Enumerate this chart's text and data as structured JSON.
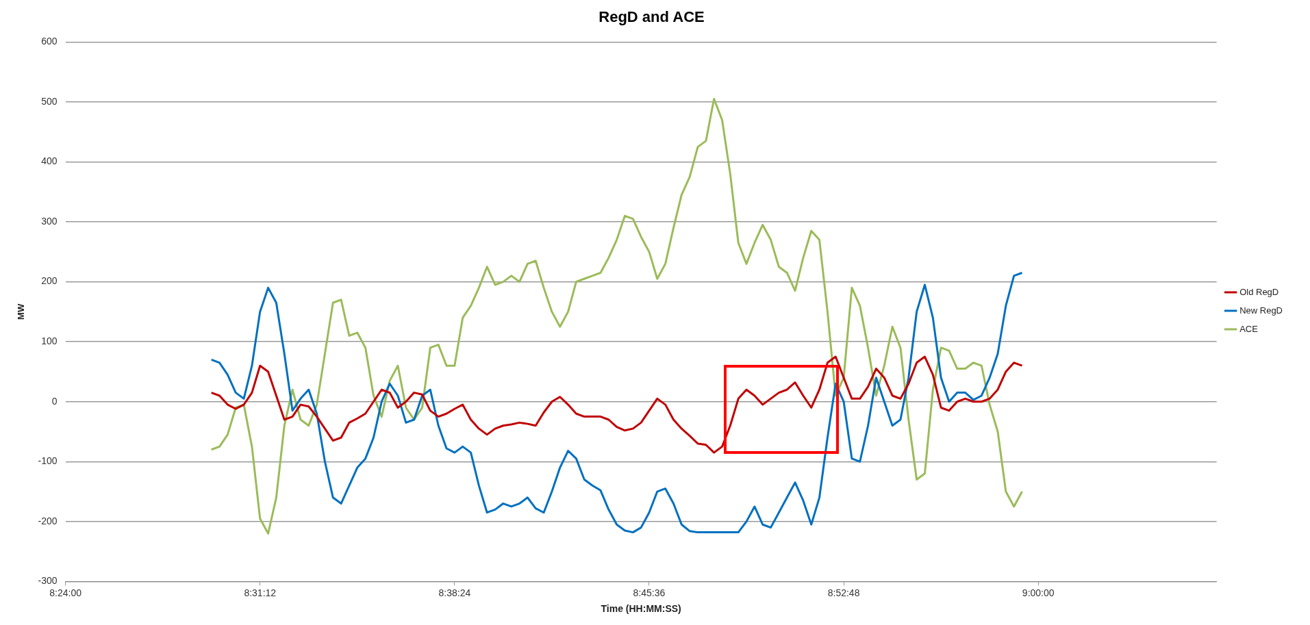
{
  "chart_data": {
    "type": "line",
    "title": "RegD and ACE",
    "xlabel": "Time (HH:MM:SS)",
    "ylabel": "MW",
    "x": [
      8.49,
      8.495,
      8.5,
      8.505,
      8.51,
      8.515,
      8.52,
      8.525,
      8.53,
      8.535,
      8.54,
      8.545,
      8.55,
      8.555,
      8.56,
      8.565,
      8.57,
      8.575,
      8.58,
      8.585,
      8.59,
      8.595,
      8.6,
      8.605,
      8.61,
      8.615,
      8.62,
      8.625,
      8.63,
      8.635,
      8.64,
      8.645,
      8.65,
      8.655,
      8.66,
      8.665,
      8.67,
      8.675,
      8.68,
      8.685,
      8.69,
      8.695,
      8.7,
      8.705,
      8.71,
      8.715,
      8.72,
      8.725,
      8.73,
      8.735,
      8.74,
      8.745,
      8.75,
      8.755,
      8.76,
      8.765,
      8.77,
      8.775,
      8.78,
      8.785,
      8.79,
      8.795,
      8.8,
      8.805,
      8.81,
      8.815,
      8.82,
      8.825,
      8.83,
      8.835,
      8.84,
      8.845,
      8.85,
      8.855,
      8.86,
      8.865,
      8.87,
      8.875,
      8.88,
      8.885,
      8.89,
      8.895,
      8.9,
      8.905,
      8.91,
      8.915,
      8.92,
      8.925,
      8.93,
      8.935,
      8.94,
      8.945,
      8.95,
      8.955,
      8.96,
      8.965,
      8.97,
      8.975,
      8.98,
      8.985,
      8.99
    ],
    "series": [
      {
        "name": "Old RegD",
        "color": "#c00000",
        "values": [
          15,
          10,
          -5,
          -12,
          -5,
          15,
          60,
          50,
          10,
          -30,
          -25,
          -5,
          -8,
          -25,
          -45,
          -65,
          -60,
          -35,
          -28,
          -20,
          0,
          20,
          15,
          -10,
          0,
          15,
          12,
          -15,
          -25,
          -20,
          -12,
          -5,
          -30,
          -45,
          -55,
          -45,
          -40,
          -38,
          -35,
          -37,
          -40,
          -18,
          0,
          8,
          -5,
          -20,
          -25,
          -25,
          -25,
          -30,
          -42,
          -48,
          -45,
          -35,
          -15,
          5,
          -5,
          -30,
          -45,
          -57,
          -70,
          -72,
          -85,
          -75,
          -40,
          5,
          20,
          10,
          -5,
          5,
          15,
          20,
          32,
          10,
          -10,
          20,
          65,
          75,
          40,
          5,
          5,
          25,
          55,
          40,
          10,
          5,
          30,
          65,
          75,
          45,
          -10,
          -15,
          0,
          5,
          0,
          0,
          5,
          20,
          50,
          65,
          60
        ]
      },
      {
        "name": "New RegD",
        "color": "#0070c0",
        "values": [
          70,
          65,
          45,
          15,
          5,
          60,
          150,
          190,
          165,
          80,
          -15,
          5,
          20,
          -20,
          -100,
          -160,
          -170,
          -140,
          -110,
          -95,
          -60,
          0,
          30,
          10,
          -35,
          -30,
          10,
          20,
          -40,
          -78,
          -85,
          -75,
          -85,
          -140,
          -185,
          -180,
          -170,
          -175,
          -170,
          -160,
          -178,
          -185,
          -150,
          -110,
          -82,
          -95,
          -130,
          -140,
          -148,
          -180,
          -205,
          -215,
          -218,
          -210,
          -185,
          -150,
          -145,
          -170,
          -205,
          -216,
          -218,
          -218,
          -218,
          -218,
          -218,
          -218,
          -200,
          -175,
          -205,
          -210,
          -185,
          -160,
          -135,
          -165,
          -205,
          -160,
          -60,
          30,
          0,
          -95,
          -100,
          -40,
          40,
          0,
          -40,
          -30,
          40,
          150,
          195,
          140,
          40,
          0,
          15,
          15,
          3,
          10,
          40,
          80,
          160,
          210,
          215
        ]
      },
      {
        "name": "ACE",
        "color": "#9bbb59",
        "values": [
          -80,
          -75,
          -55,
          -10,
          -5,
          -75,
          -195,
          -220,
          -160,
          -40,
          20,
          -30,
          -40,
          -5,
          80,
          165,
          170,
          110,
          115,
          90,
          10,
          -25,
          35,
          60,
          -10,
          -30,
          -10,
          90,
          95,
          60,
          60,
          140,
          160,
          190,
          225,
          195,
          200,
          210,
          200,
          230,
          235,
          190,
          150,
          125,
          150,
          200,
          205,
          210,
          215,
          240,
          270,
          310,
          305,
          275,
          250,
          205,
          230,
          290,
          345,
          375,
          425,
          435,
          505,
          470,
          380,
          265,
          230,
          265,
          295,
          270,
          225,
          215,
          185,
          240,
          285,
          270,
          150,
          10,
          40,
          190,
          160,
          90,
          10,
          60,
          125,
          90,
          -30,
          -130,
          -120,
          20,
          90,
          85,
          55,
          55,
          65,
          60,
          -5,
          -50,
          -150,
          -175,
          -150
        ]
      }
    ],
    "xlim": [
      8.4,
      9.11
    ],
    "xticks": [
      {
        "value": 8.4,
        "label": "8:24:00"
      },
      {
        "value": 8.52,
        "label": "8:31:12"
      },
      {
        "value": 8.64,
        "label": "8:38:24"
      },
      {
        "value": 8.76,
        "label": "8:45:36"
      },
      {
        "value": 8.88,
        "label": "8:52:48"
      },
      {
        "value": 9.0,
        "label": "9:00:00"
      }
    ],
    "ylim": [
      -300,
      600
    ],
    "yticks": [
      -300,
      -200,
      -100,
      0,
      100,
      200,
      300,
      400,
      500,
      600
    ],
    "grid": "y",
    "legend": "right",
    "marker": "none",
    "line_style": "solid"
  }
}
